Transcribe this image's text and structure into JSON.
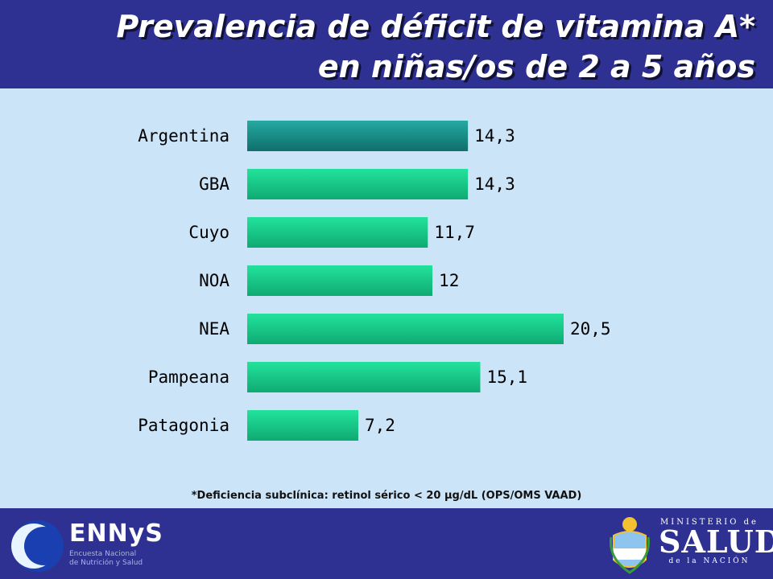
{
  "header": {
    "title_line1": "Prevalencia de déficit de vitamina A*",
    "title_line2": "en niñas/os de 2 a 5 años"
  },
  "chart_data": {
    "type": "bar",
    "orientation": "horizontal",
    "categories": [
      "Argentina",
      "GBA",
      "Cuyo",
      "NOA",
      "NEA",
      "Pampeana",
      "Patagonia"
    ],
    "values": [
      14.3,
      14.3,
      11.7,
      12,
      20.5,
      15.1,
      7.2
    ],
    "value_labels": [
      "14,3",
      "14,3",
      "11,7",
      "12",
      "20,5",
      "15,1",
      "7,2"
    ],
    "colors": [
      "#1a8f8a",
      "#19d98f",
      "#19d98f",
      "#19d98f",
      "#19d98f",
      "#19d98f",
      "#19d98f"
    ],
    "xlim": [
      0,
      20.5
    ],
    "grid": false,
    "legend": "none"
  },
  "footnote": "*Deficiencia subclínica:  retinol sérico < 20 µg/dL (OPS/OMS VAAD)",
  "footer": {
    "ennys_name": "ENNyS",
    "ennys_sub1": "Encuesta Nacional",
    "ennys_sub2": "de Nutrición y Salud",
    "ministry_top": "MINISTERIO de",
    "ministry_main": "SALUD",
    "ministry_bottom": "de la NACIÓN"
  },
  "colors": {
    "header": "#2e3192",
    "background": "#cce4f7",
    "bar_highlight": "#1a8f8a",
    "bar": "#19d98f"
  }
}
